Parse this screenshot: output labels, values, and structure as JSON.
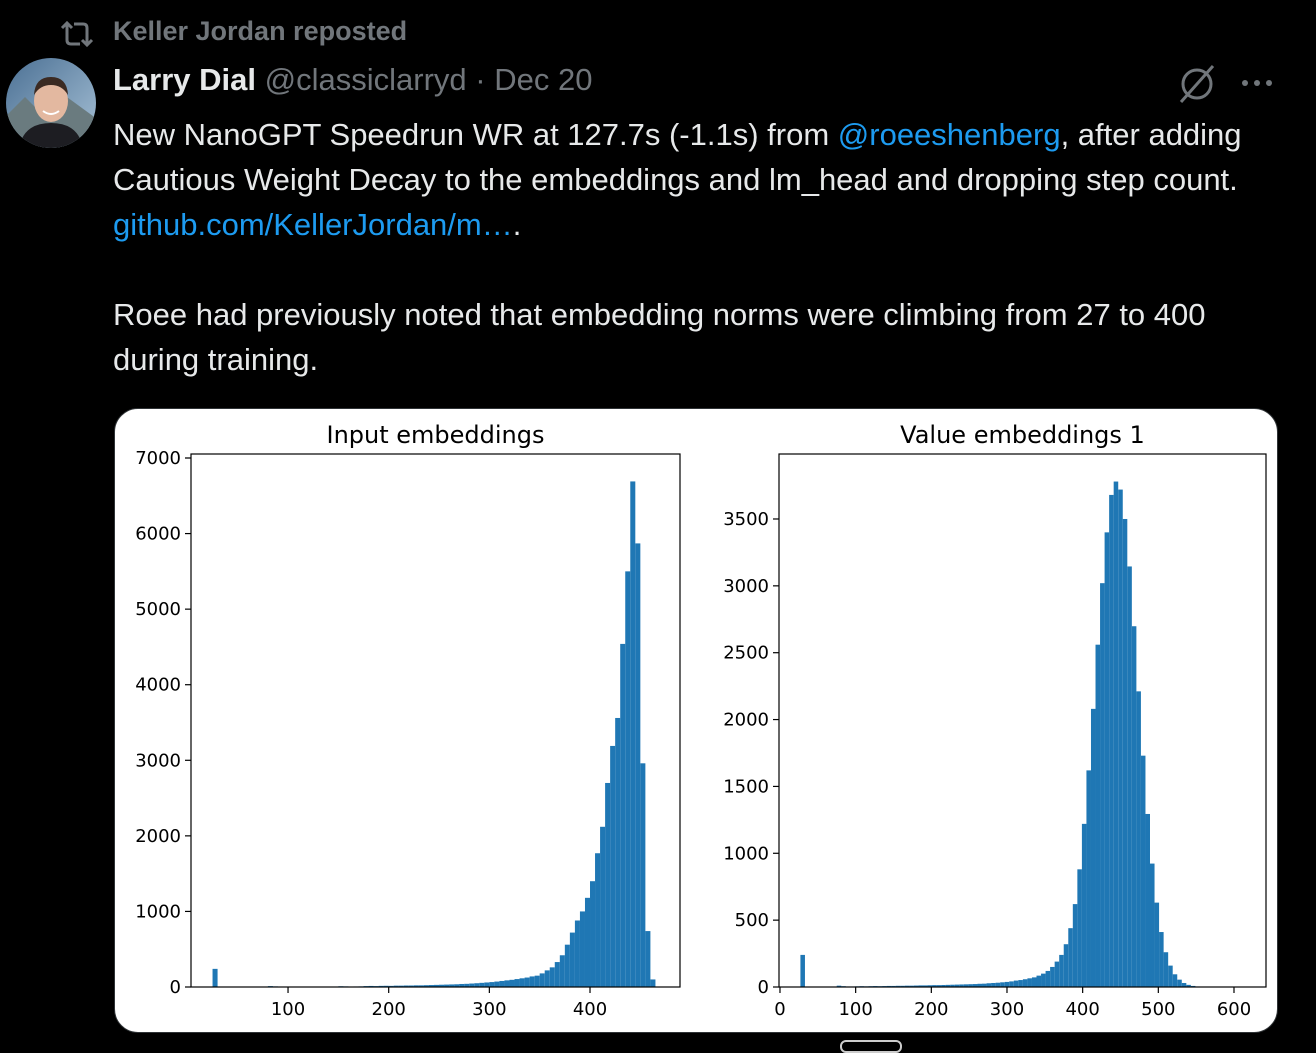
{
  "tweet": {
    "repost": "Keller Jordan reposted",
    "author": {
      "name": "Larry Dial",
      "handle": "@classiclarryd",
      "separator": "·",
      "date": "Dec 20"
    },
    "body": [
      [
        "New NanoGPT Speedrun WR at 127.7s (-1.1s) from ",
        "@roeeshenberg",
        ", after adding Cautious Weight Decay to the embeddings and lm_head and dropping step count. ",
        "github.com/KellerJordan/m…",
        "."
      ],
      [
        "Roee had previously noted that embedding norms were climbing from 27 to 400 during training."
      ]
    ]
  },
  "chart_data": [
    {
      "type": "histogram",
      "title": "Input embeddings",
      "color": "#1f77b4",
      "bins": [
        25,
        30,
        35,
        40,
        45,
        50,
        55,
        60,
        65,
        70,
        75,
        80,
        85,
        90,
        95,
        100,
        105,
        110,
        115,
        120,
        125,
        130,
        135,
        140,
        145,
        150,
        155,
        160,
        165,
        170,
        175,
        180,
        185,
        190,
        195,
        200,
        205,
        210,
        215,
        220,
        225,
        230,
        235,
        240,
        245,
        250,
        255,
        260,
        265,
        270,
        275,
        280,
        285,
        290,
        295,
        300,
        305,
        310,
        315,
        320,
        325,
        330,
        335,
        340,
        345,
        350,
        355,
        360,
        365,
        370,
        375,
        380,
        385,
        390,
        395,
        400,
        405,
        410,
        415,
        420,
        425,
        430,
        435,
        440,
        445,
        450,
        455,
        460,
        465
      ],
      "values": [
        240,
        0,
        0,
        0,
        0,
        0,
        0,
        0,
        0,
        0,
        5,
        12,
        8,
        4,
        2,
        3,
        2,
        2,
        2,
        3,
        3,
        4,
        4,
        5,
        6,
        10,
        8,
        6,
        7,
        8,
        12,
        14,
        12,
        15,
        16,
        15,
        18,
        18,
        20,
        20,
        22,
        22,
        24,
        26,
        28,
        30,
        32,
        34,
        36,
        40,
        42,
        46,
        50,
        55,
        60,
        65,
        72,
        80,
        88,
        95,
        105,
        115,
        125,
        140,
        150,
        180,
        220,
        260,
        330,
        420,
        560,
        720,
        880,
        1000,
        1180,
        1400,
        1770,
        2120,
        2700,
        3190,
        3560,
        4540,
        5500,
        6690,
        5870,
        2960,
        740,
        100
      ],
      "xlim": [
        3.6,
        489.4
      ],
      "ylim": [
        0,
        7053
      ],
      "xticks": [
        100,
        200,
        300,
        400
      ],
      "yticks": [
        0,
        1000,
        2000,
        3000,
        4000,
        5000,
        6000,
        7000
      ]
    },
    {
      "type": "histogram",
      "title": "Value embeddings 1",
      "color": "#1f77b4",
      "bins": [
        27,
        33,
        39,
        45,
        51,
        57,
        63,
        69,
        75,
        81,
        87,
        93,
        99,
        105,
        111,
        117,
        123,
        129,
        135,
        141,
        147,
        153,
        159,
        165,
        171,
        177,
        183,
        189,
        195,
        201,
        207,
        213,
        219,
        225,
        231,
        237,
        243,
        249,
        255,
        261,
        267,
        273,
        279,
        285,
        291,
        297,
        303,
        309,
        315,
        321,
        327,
        333,
        339,
        345,
        351,
        357,
        363,
        369,
        375,
        381,
        387,
        393,
        399,
        405,
        411,
        417,
        423,
        429,
        435,
        441,
        447,
        453,
        459,
        465,
        471,
        477,
        483,
        489,
        495,
        501,
        507,
        513,
        519,
        525,
        531,
        537,
        543,
        549,
        555,
        561,
        567,
        573,
        579,
        585,
        591,
        597,
        603,
        609,
        615
      ],
      "values": [
        240,
        0,
        0,
        0,
        0,
        0,
        0,
        0,
        10,
        6,
        4,
        4,
        5,
        6,
        5,
        6,
        7,
        6,
        7,
        8,
        8,
        9,
        9,
        10,
        10,
        11,
        12,
        12,
        13,
        14,
        14,
        15,
        16,
        17,
        18,
        19,
        20,
        21,
        22,
        24,
        25,
        28,
        30,
        32,
        35,
        38,
        42,
        48,
        52,
        58,
        65,
        72,
        85,
        100,
        120,
        150,
        190,
        240,
        320,
        440,
        620,
        880,
        1220,
        1620,
        2080,
        2560,
        3020,
        3400,
        3680,
        3780,
        3720,
        3500,
        3145,
        2698,
        2211,
        1730,
        1294,
        923,
        631,
        411,
        260,
        160,
        95,
        55,
        30,
        16,
        8,
        4,
        2,
        1,
        0,
        0,
        0,
        0,
        0,
        0,
        0,
        1
      ],
      "xlim": [
        -1.3,
        642.3
      ],
      "ylim": [
        0,
        3986
      ],
      "xticks": [
        0,
        100,
        200,
        300,
        400,
        500,
        600
      ],
      "yticks": [
        0,
        500,
        1000,
        1500,
        2000,
        2500,
        3000,
        3500
      ]
    }
  ]
}
